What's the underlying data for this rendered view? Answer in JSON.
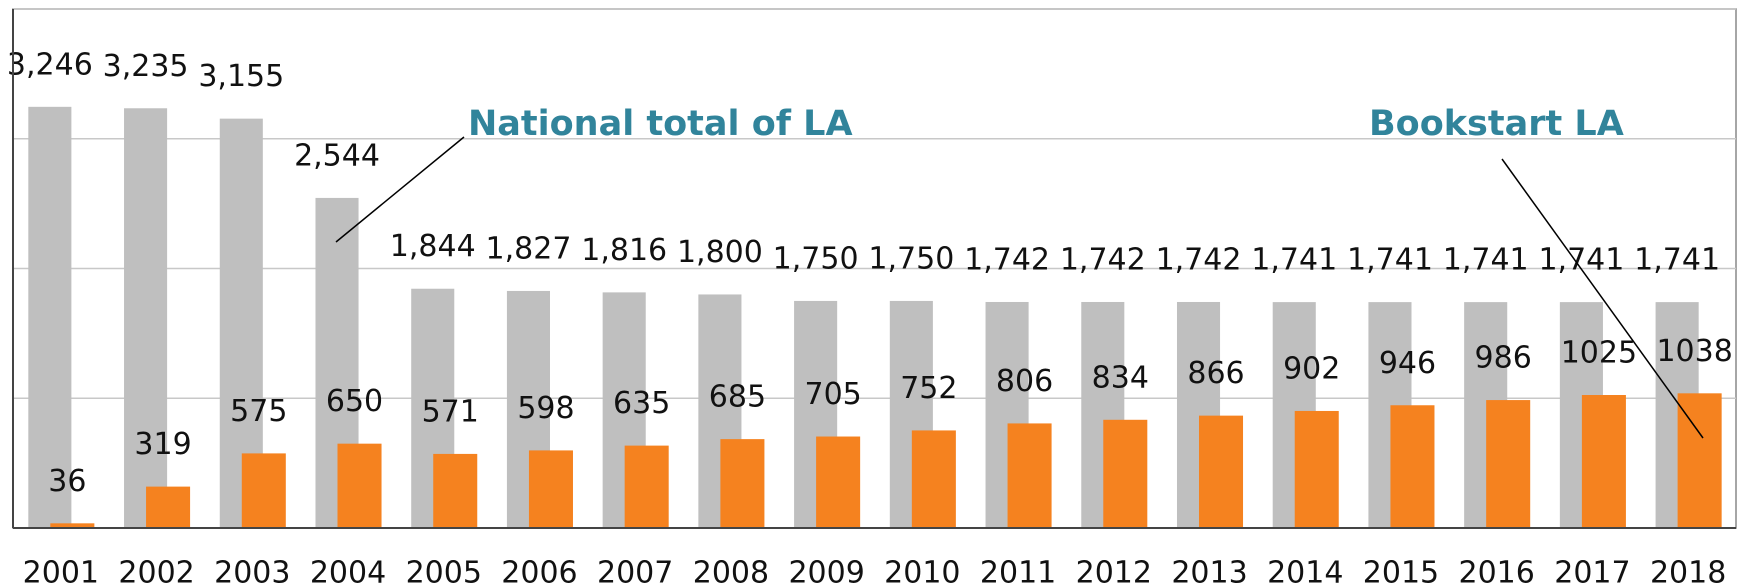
{
  "chart_data": {
    "type": "bar",
    "categories": [
      "2001",
      "2002",
      "2003",
      "2004",
      "2005",
      "2006",
      "2007",
      "2008",
      "2009",
      "2010",
      "2011",
      "2012",
      "2013",
      "2014",
      "2015",
      "2016",
      "2017",
      "2018"
    ],
    "series": [
      {
        "name": "National total of LA",
        "color": "#bfbfbf",
        "values": [
          3246,
          3235,
          3155,
          2544,
          1844,
          1827,
          1816,
          1800,
          1750,
          1750,
          1742,
          1742,
          1742,
          1741,
          1741,
          1741,
          1741,
          1741
        ],
        "value_labels": [
          "3,246",
          "3,235",
          "3,155",
          "2,544",
          "1,844",
          "1,827",
          "1,816",
          "1,800",
          "1,750",
          "1,750",
          "1,742",
          "1,742",
          "1,742",
          "1,741",
          "1,741",
          "1,741",
          "1,741",
          "1,741"
        ]
      },
      {
        "name": "Bookstart LA",
        "color": "#f5821f",
        "values": [
          36,
          319,
          575,
          650,
          571,
          598,
          635,
          685,
          705,
          752,
          806,
          834,
          866,
          902,
          946,
          986,
          1025,
          1038
        ]
      }
    ],
    "ylim": [
      0,
      4000
    ],
    "yticks": [
      0,
      1000,
      2000,
      3000,
      4000
    ],
    "ytick_labels": false,
    "grid": true
  }
}
